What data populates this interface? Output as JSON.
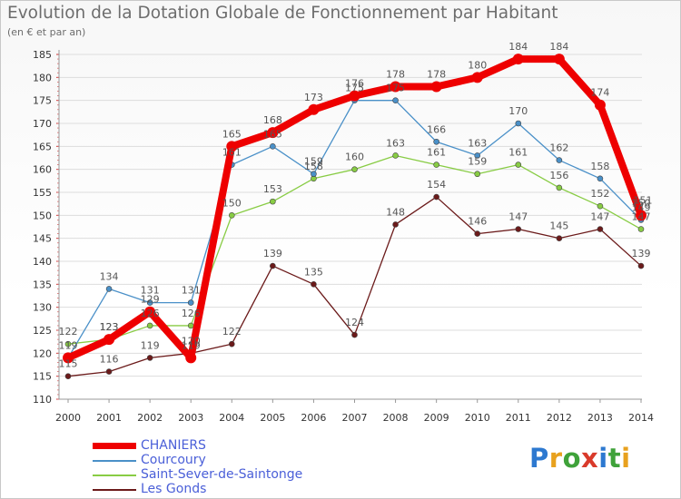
{
  "logo": {
    "text": "Proxiti",
    "letter_colors": [
      "#2d79d0",
      "#e8a11e",
      "#3fa23a",
      "#d93a2b",
      "#2d79d0",
      "#3fa23a",
      "#e8a11e"
    ]
  },
  "chart_data": {
    "type": "line",
    "title": "Evolution de la Dotation Globale de Fonctionnement par Habitant",
    "subtitle": "(en € et par an)",
    "xlabel": "",
    "ylabel": "",
    "x": [
      "2000",
      "2001",
      "2002",
      "2003",
      "2004",
      "2005",
      "2006",
      "2007",
      "2008",
      "2009",
      "2010",
      "2011",
      "2012",
      "2013",
      "2014"
    ],
    "ylim": [
      110,
      185
    ],
    "yticks": [
      "110",
      "115",
      "120",
      "125",
      "130",
      "135",
      "140",
      "145",
      "150",
      "155",
      "160",
      "165",
      "170",
      "175",
      "180",
      "185"
    ],
    "grid": "horizontal",
    "legend_position": "bottom-left",
    "series": [
      {
        "name": "CHANIERS",
        "color": "#ee0000",
        "values": [
          119,
          123,
          129,
          119,
          165,
          168,
          173,
          176,
          178,
          178,
          180,
          184,
          184,
          174,
          150
        ],
        "labels": [
          "",
          "123",
          "129",
          "119",
          "165",
          "168",
          "173",
          "176",
          "178",
          "178",
          "180",
          "184",
          "184",
          "174",
          "150"
        ]
      },
      {
        "name": "Courcoury",
        "color": "#4a90c8",
        "values": [
          119,
          134,
          131,
          131,
          161,
          165,
          159,
          175,
          175,
          166,
          163,
          170,
          162,
          158,
          149
        ],
        "labels": [
          "",
          "134",
          "131",
          "131",
          "161",
          "165",
          "159",
          "175",
          "175",
          "166",
          "163",
          "170",
          "162",
          "158",
          "149"
        ]
      },
      {
        "name": "Saint-Sever-de-Saintonge",
        "color": "#88cc44",
        "values": [
          122,
          123,
          126,
          126,
          150,
          153,
          158,
          160,
          163,
          161,
          159,
          161,
          156,
          152,
          147
        ],
        "labels": [
          "122",
          "123",
          "126",
          "126",
          "150",
          "153",
          "158",
          "160",
          "163",
          "161",
          "159",
          "161",
          "156",
          "152",
          "147"
        ]
      },
      {
        "name": "Les Gonds",
        "color": "#6b1a1a",
        "values": [
          115,
          116,
          119,
          120,
          122,
          139,
          135,
          124,
          148,
          154,
          146,
          147,
          145,
          147,
          139
        ],
        "labels": [
          "115",
          "116",
          "119",
          "120",
          "122",
          "139",
          "135",
          "124",
          "148",
          "154",
          "146",
          "147",
          "145",
          "147",
          "139"
        ]
      }
    ],
    "extra_labels": [
      "119",
      "151"
    ]
  }
}
